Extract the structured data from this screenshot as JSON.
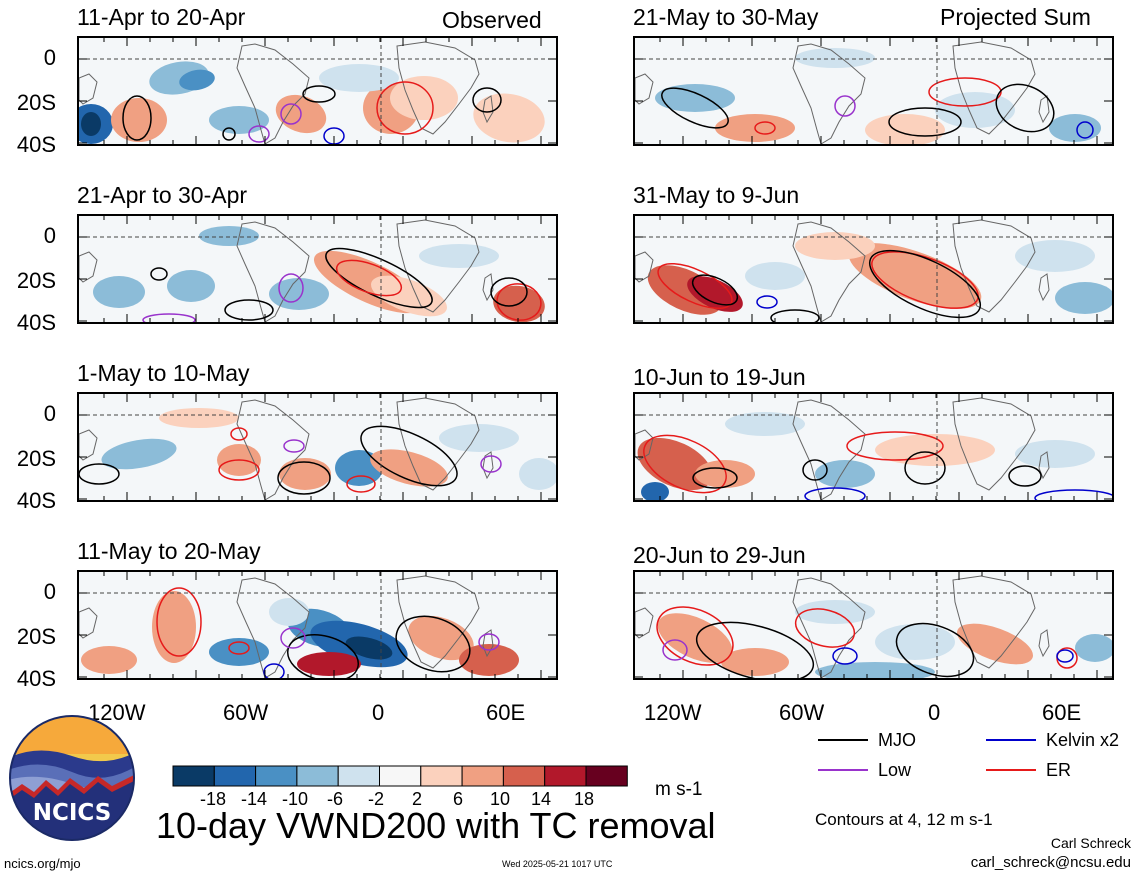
{
  "corner_left": "Observed",
  "corner_right": "Projected Sum",
  "panels": [
    {
      "title": "11-Apr to 20-Apr"
    },
    {
      "title": "21-Apr to 30-Apr"
    },
    {
      "title": "1-May to 10-May"
    },
    {
      "title": "11-May to 20-May"
    },
    {
      "title": "21-May to 30-May"
    },
    {
      "title": "31-May to 9-Jun"
    },
    {
      "title": "10-Jun to 19-Jun"
    },
    {
      "title": "20-Jun to 29-Jun"
    }
  ],
  "chart_data": {
    "type": "heatmap",
    "title": "10-day VWND200 with TC removal",
    "x_ticks": [
      "120W",
      "60W",
      "0",
      "60E"
    ],
    "y_ticks": [
      "0",
      "20S",
      "40S"
    ],
    "colorbar": {
      "ticks": [
        "-18",
        "-14",
        "-10",
        "-6",
        "-2",
        "2",
        "6",
        "10",
        "14",
        "18"
      ],
      "units": "m s-1",
      "colors": [
        "#0a3a66",
        "#2266ad",
        "#4a90c4",
        "#8cbcd8",
        "#cfe2ee",
        "#f7f7f7",
        "#fbd1bd",
        "#f0a082",
        "#d6604d",
        "#b2182b",
        "#67001f"
      ]
    },
    "contour_legend": [
      {
        "label": "MJO",
        "color": "#000000"
      },
      {
        "label": "Kelvin x2",
        "color": "#0000cc"
      },
      {
        "label": "Low",
        "color": "#9933cc"
      },
      {
        "label": "ER",
        "color": "#e61a1a"
      }
    ],
    "contour_note": "Contours at 4, 12 m s-1"
  },
  "footer": {
    "author": "Carl Schreck",
    "email": "carl_schreck@ncsu.edu",
    "site": "ncics.org/mjo",
    "timestamp": "Wed 2025-05-21 1017 UTC",
    "logo_text": "NCICS"
  }
}
